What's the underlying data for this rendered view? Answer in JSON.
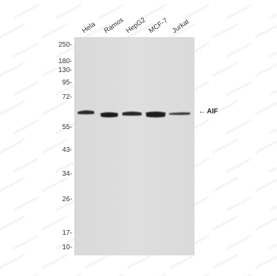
{
  "lanes": [
    "Hela",
    "Ramos",
    "HepG2",
    "MCF-7",
    "Jurkat"
  ],
  "markers": [
    "250-",
    "180-",
    "130-",
    "95-",
    "72-",
    "55-",
    "43-",
    "34-",
    "26-",
    "17-",
    "10-"
  ],
  "target": {
    "arrow": "←",
    "label": "AIF"
  },
  "watermark": "antibodysystem"
}
